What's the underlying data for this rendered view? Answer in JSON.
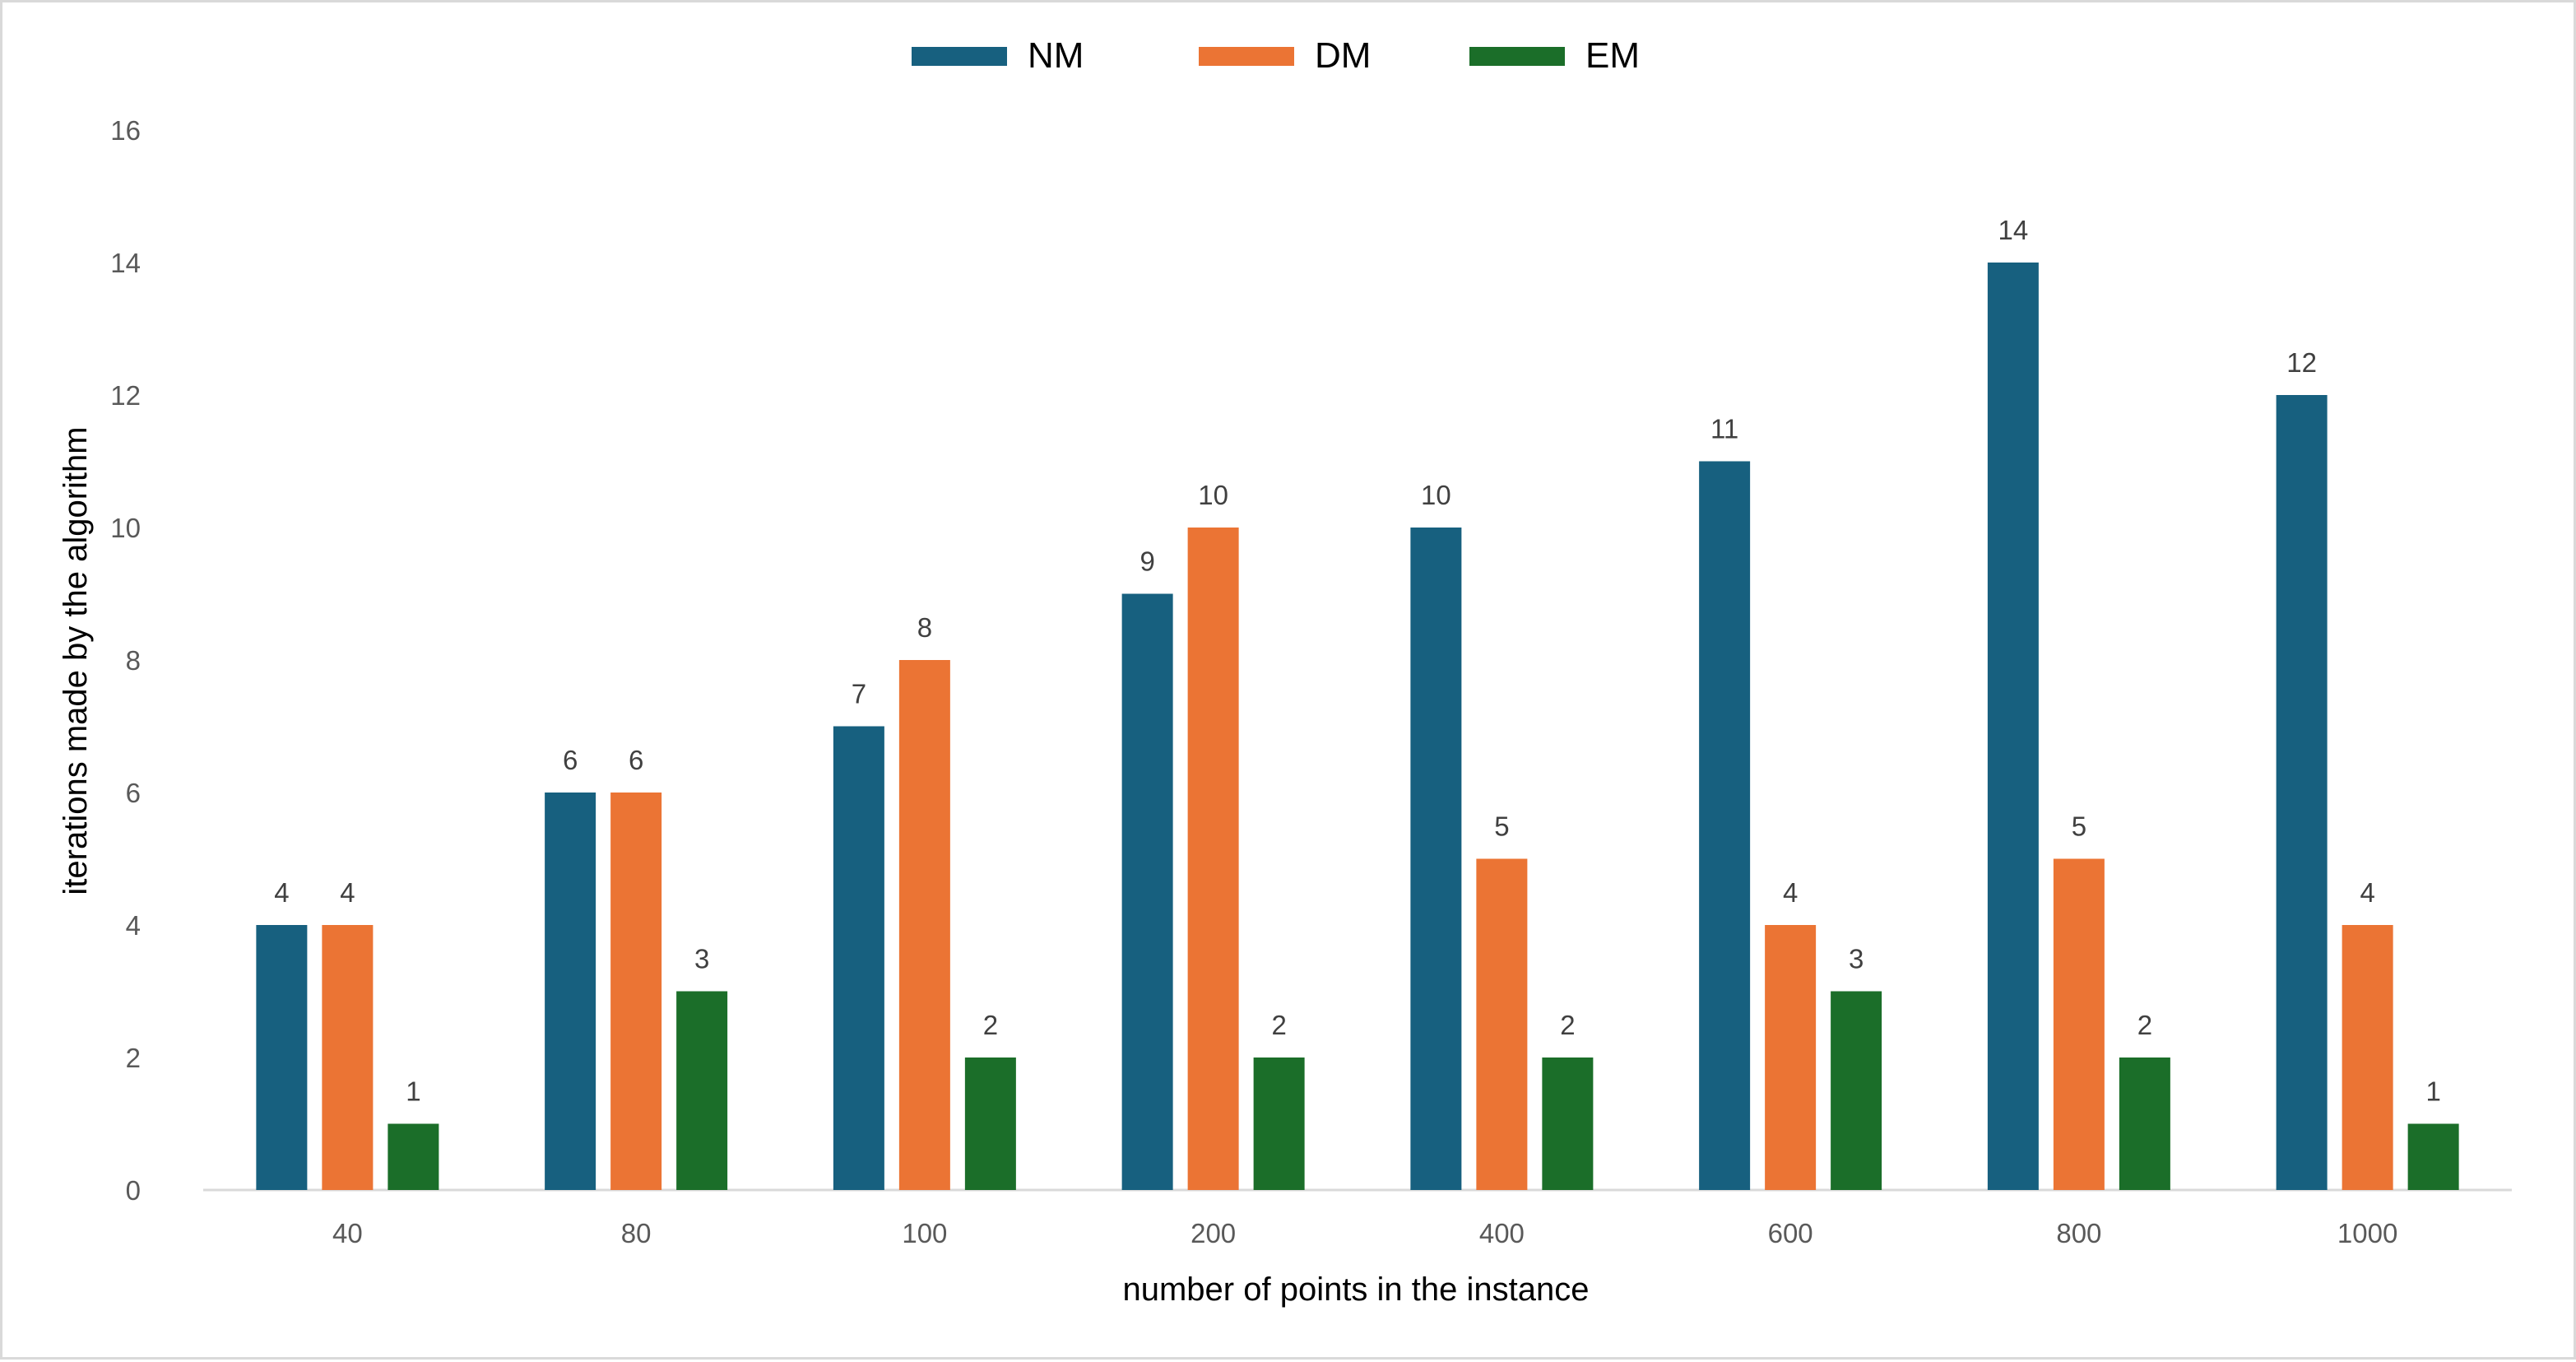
{
  "chart_data": {
    "type": "bar",
    "title": "",
    "xlabel": "number of points in the instance",
    "ylabel": "iterations made by the algorithm",
    "categories": [
      "40",
      "80",
      "100",
      "200",
      "400",
      "600",
      "800",
      "1000"
    ],
    "series": [
      {
        "name": "NM",
        "color": "#17607f",
        "values": [
          4,
          6,
          7,
          9,
          10,
          11,
          14,
          12
        ]
      },
      {
        "name": "DM",
        "color": "#eb7434",
        "values": [
          4,
          6,
          8,
          10,
          5,
          4,
          5,
          4
        ]
      },
      {
        "name": "EM",
        "color": "#1b6e29",
        "values": [
          1,
          3,
          2,
          2,
          2,
          3,
          2,
          1
        ]
      }
    ],
    "ylim": [
      0,
      16
    ],
    "yticks": [
      0,
      2,
      4,
      6,
      8,
      10,
      12,
      14,
      16
    ],
    "grid": false,
    "legend_position": "top-center",
    "data_labels": true
  }
}
